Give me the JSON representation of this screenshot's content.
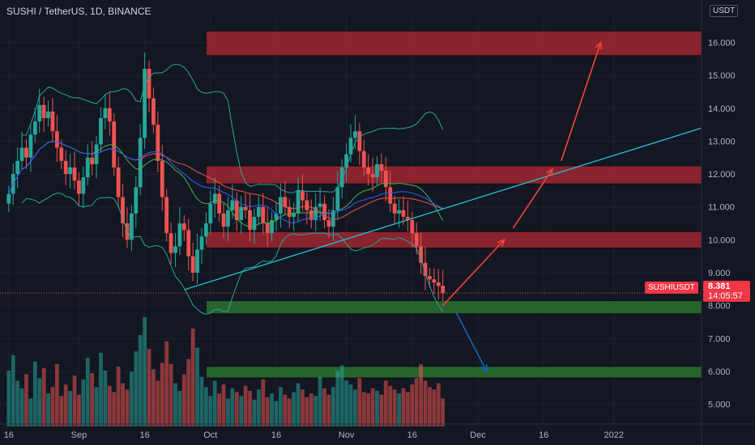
{
  "header": {
    "title": "SUSHI / TetherUS, 1D, BINANCE"
  },
  "currency_badge": "USDT",
  "symbol_tag": "SUSHIUSDT",
  "price_tag": {
    "price": "8.381",
    "countdown": "14:05:57"
  },
  "colors": {
    "background": "#131722",
    "up": "#26a69a",
    "down": "#ef5350",
    "resistance_zone": "#b22833",
    "support_zone": "#2f7d32",
    "trendline": "#22c1d6",
    "arrow_up": "#f44336",
    "arrow_down": "#1565c0",
    "ma_blue": "#2962ff",
    "ma_red": "#ef5350",
    "ma_green": "#4caf50",
    "bollinger": "#26a69a"
  },
  "chart_data": {
    "type": "candlestick",
    "symbol": "SUSHIUSDT",
    "y_ticks": [
      5.0,
      6.0,
      7.0,
      8.0,
      9.0,
      10.0,
      11.0,
      12.0,
      13.0,
      14.0,
      15.0,
      16.0
    ],
    "y_tick_labels": [
      "5.000",
      "6.000",
      "7.000",
      "8.000",
      "9.000",
      "10.000",
      "11.000",
      "12.000",
      "13.000",
      "14.000",
      "15.000",
      "16.000"
    ],
    "x_ticks": [
      {
        "label": "16",
        "day": 0
      },
      {
        "label": "Sep",
        "day": 16
      },
      {
        "label": "16",
        "day": 31
      },
      {
        "label": "Oct",
        "day": 46
      },
      {
        "label": "16",
        "day": 61
      },
      {
        "label": "Nov",
        "day": 77
      },
      {
        "label": "16",
        "day": 92
      },
      {
        "label": "Dec",
        "day": 107
      },
      {
        "label": "16",
        "day": 122
      },
      {
        "label": "2022",
        "day": 138
      }
    ],
    "ylim": [
      4.4,
      16.8
    ],
    "xlim": [
      -2,
      158
    ],
    "last_price": 8.381,
    "closes": [
      11.4,
      12.0,
      12.4,
      12.8,
      12.5,
      13.2,
      13.6,
      14.1,
      13.7,
      13.9,
      13.3,
      12.8,
      12.4,
      12.0,
      12.2,
      11.8,
      11.4,
      11.9,
      12.5,
      12.3,
      12.9,
      13.7,
      14.0,
      13.6,
      12.2,
      11.3,
      10.5,
      10.0,
      10.8,
      11.6,
      13.1,
      15.2,
      14.3,
      13.5,
      12.4,
      11.3,
      10.2,
      9.6,
      9.8,
      10.5,
      10.3,
      9.5,
      9.0,
      9.7,
      10.1,
      10.5,
      11.1,
      11.4,
      10.8,
      10.4,
      10.9,
      11.2,
      10.6,
      11.0,
      10.9,
      10.3,
      10.7,
      11.0,
      10.5,
      10.2,
      10.6,
      10.8,
      11.3,
      11.0,
      10.7,
      10.8,
      11.5,
      11.2,
      10.9,
      10.6,
      11.0,
      11.1,
      10.6,
      10.4,
      10.9,
      11.6,
      12.2,
      12.6,
      13.1,
      13.3,
      12.7,
      12.2,
      12.0,
      11.9,
      12.3,
      12.1,
      11.6,
      11.1,
      10.8,
      10.9,
      10.7,
      10.6,
      10.2,
      9.8,
      9.3,
      8.9,
      8.8,
      8.7,
      8.6,
      8.381
    ],
    "volume": [
      4.4,
      5.6,
      3.6,
      3.0,
      4.1,
      2.2,
      5.1,
      3.8,
      4.6,
      2.6,
      3.1,
      4.9,
      2.4,
      3.3,
      2.8,
      4.0,
      2.5,
      3.7,
      5.4,
      4.2,
      3.1,
      5.8,
      4.4,
      3.2,
      2.7,
      4.7,
      3.4,
      2.9,
      4.3,
      5.9,
      7.2,
      8.6,
      6.1,
      4.5,
      3.6,
      5.0,
      6.7,
      4.9,
      3.4,
      2.8,
      4.1,
      5.3,
      7.7,
      6.2,
      3.9,
      3.1,
      2.4,
      3.6,
      2.6,
      3.3,
      2.2,
      3.0,
      2.7,
      2.4,
      3.2,
      2.8,
      2.1,
      2.9,
      3.7,
      2.3,
      2.6,
      2.0,
      3.1,
      2.5,
      2.2,
      2.7,
      3.4,
      2.9,
      2.3,
      2.6,
      2.4,
      3.9,
      3.0,
      2.5,
      3.1,
      4.4,
      4.8,
      3.6,
      3.3,
      2.9,
      3.8,
      2.7,
      2.6,
      3.0,
      2.8,
      2.5,
      3.6,
      3.2,
      2.9,
      2.6,
      3.0,
      2.7,
      3.3,
      3.8,
      4.9,
      3.6,
      3.1,
      2.9,
      3.4,
      2.2
    ],
    "zones": [
      {
        "kind": "resistance",
        "from": 15.6,
        "to": 16.35,
        "x_start_day": 45
      },
      {
        "kind": "resistance",
        "from": 11.7,
        "to": 12.25,
        "x_start_day": 45
      },
      {
        "kind": "resistance",
        "from": 9.75,
        "to": 10.25,
        "x_start_day": 45
      },
      {
        "kind": "support",
        "from": 7.75,
        "to": 8.15,
        "x_start_day": 45
      },
      {
        "kind": "support",
        "from": 5.8,
        "to": 6.15,
        "x_start_day": 45
      }
    ],
    "trendline": [
      [
        40,
        8.48
      ],
      [
        158,
        13.4
      ]
    ],
    "arrows_up": [
      [
        [
          99,
          8.0
        ],
        [
          113,
          10.0
        ]
      ],
      [
        [
          115,
          10.35
        ],
        [
          124,
          12.15
        ]
      ],
      [
        [
          126,
          12.4
        ],
        [
          135,
          16.0
        ]
      ]
    ],
    "arrow_down": [
      [
        102,
        7.8
      ],
      [
        109,
        6.0
      ]
    ]
  }
}
